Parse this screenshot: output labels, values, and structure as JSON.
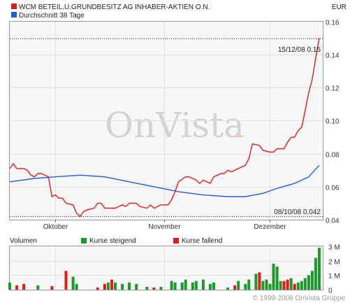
{
  "header": {
    "instrument": "WCM BETEIL.U.GRUNDBESITZ AG INHABER-AKTIEN O.N.",
    "currency": "EUR",
    "average_label": "Durchschnitt 38 Tage"
  },
  "watermark": "OnVista",
  "watermark_dot": ".",
  "copyright": "© 1999-2008 OnVista Gruppe",
  "colors": {
    "price": "#e31b1b",
    "average": "#1f5fd6",
    "rising": "#1a9a2a",
    "falling": "#e31b1b",
    "panel_bg": "#f7f7f7",
    "frame": "#9a9a9a"
  },
  "annotations": {
    "high": "15/12/08 0.15",
    "low": "08/10/08 0.042"
  },
  "volume_panel": {
    "title": "Volumen",
    "legend_up": "Kurse steigend",
    "legend_down": "Kurse fallend"
  },
  "chart_data": [
    {
      "type": "line",
      "title": "WCM BETEIL.U.GRUNDBESITZ AG INHABER-AKTIEN O.N.",
      "unit": "EUR",
      "x_range": [
        "2008-09-18",
        "2008-12-16"
      ],
      "x_ticks": [
        {
          "label": "Oktober",
          "date": "2008-10-01"
        },
        {
          "label": "November",
          "date": "2008-11-01"
        },
        {
          "label": "Dezember",
          "date": "2008-12-01"
        }
      ],
      "ylim": [
        0.04,
        0.16
      ],
      "y_ticks": [
        {
          "label": "0.04",
          "value": 0.04
        },
        {
          "label": "0.06",
          "value": 0.06
        },
        {
          "label": "0.08",
          "value": 0.08
        },
        {
          "label": "0.10",
          "value": 0.1
        },
        {
          "label": "0.12",
          "value": 0.12
        },
        {
          "label": "0.14",
          "value": 0.14
        },
        {
          "label": "0.16",
          "value": 0.16
        }
      ],
      "reference_lines": [
        {
          "value": 0.15,
          "label": "15/12/08 0.15"
        },
        {
          "value": 0.042,
          "label": "08/10/08 0.042"
        }
      ],
      "legend": "top-left",
      "series": [
        {
          "name": "WCM BETEIL.U.GRUNDBESITZ AG INHABER-AKTIEN O.N.",
          "color": "#e31b1b",
          "points": [
            [
              "2008-09-18",
              0.071
            ],
            [
              "2008-09-19",
              0.074
            ],
            [
              "2008-09-20",
              0.071
            ],
            [
              "2008-09-22",
              0.071
            ],
            [
              "2008-09-23",
              0.07
            ],
            [
              "2008-09-24",
              0.067
            ],
            [
              "2008-09-25",
              0.066
            ],
            [
              "2008-09-26",
              0.068
            ],
            [
              "2008-09-27",
              0.068
            ],
            [
              "2008-09-29",
              0.066
            ],
            [
              "2008-09-30",
              0.054
            ],
            [
              "2008-10-01",
              0.055
            ],
            [
              "2008-10-02",
              0.053
            ],
            [
              "2008-10-03",
              0.053
            ],
            [
              "2008-10-04",
              0.05
            ],
            [
              "2008-10-06",
              0.049
            ],
            [
              "2008-10-07",
              0.044
            ],
            [
              "2008-10-08",
              0.042
            ],
            [
              "2008-10-09",
              0.045
            ],
            [
              "2008-10-10",
              0.046
            ],
            [
              "2008-10-12",
              0.047
            ],
            [
              "2008-10-13",
              0.05
            ],
            [
              "2008-10-14",
              0.05
            ],
            [
              "2008-10-15",
              0.047
            ],
            [
              "2008-10-17",
              0.047
            ],
            [
              "2008-10-18",
              0.047
            ],
            [
              "2008-10-20",
              0.049
            ],
            [
              "2008-10-21",
              0.048
            ],
            [
              "2008-10-22",
              0.05
            ],
            [
              "2008-10-24",
              0.05
            ],
            [
              "2008-10-25",
              0.048
            ],
            [
              "2008-10-27",
              0.047
            ],
            [
              "2008-10-28",
              0.049
            ],
            [
              "2008-10-29",
              0.047
            ],
            [
              "2008-10-31",
              0.049
            ],
            [
              "2008-11-01",
              0.049
            ],
            [
              "2008-11-02",
              0.049
            ],
            [
              "2008-11-03",
              0.052
            ],
            [
              "2008-11-04",
              0.057
            ],
            [
              "2008-11-05",
              0.063
            ],
            [
              "2008-11-07",
              0.066
            ],
            [
              "2008-11-08",
              0.066
            ],
            [
              "2008-11-10",
              0.064
            ],
            [
              "2008-11-11",
              0.062
            ],
            [
              "2008-11-12",
              0.064
            ],
            [
              "2008-11-14",
              0.062
            ],
            [
              "2008-11-15",
              0.066
            ],
            [
              "2008-11-17",
              0.068
            ],
            [
              "2008-11-18",
              0.068
            ],
            [
              "2008-11-19",
              0.07
            ],
            [
              "2008-11-20",
              0.069
            ],
            [
              "2008-11-22",
              0.071
            ],
            [
              "2008-11-23",
              0.072
            ],
            [
              "2008-11-24",
              0.073
            ],
            [
              "2008-11-25",
              0.077
            ],
            [
              "2008-11-26",
              0.086
            ],
            [
              "2008-11-28",
              0.085
            ],
            [
              "2008-11-29",
              0.082
            ],
            [
              "2008-12-01",
              0.081
            ],
            [
              "2008-12-02",
              0.081
            ],
            [
              "2008-12-03",
              0.083
            ],
            [
              "2008-12-05",
              0.083
            ],
            [
              "2008-12-06",
              0.087
            ],
            [
              "2008-12-07",
              0.09
            ],
            [
              "2008-12-08",
              0.09
            ],
            [
              "2008-12-09",
              0.094
            ],
            [
              "2008-12-10",
              0.096
            ],
            [
              "2008-12-11",
              0.106
            ],
            [
              "2008-12-12",
              0.117
            ],
            [
              "2008-12-13",
              0.125
            ],
            [
              "2008-12-14",
              0.138
            ],
            [
              "2008-12-15",
              0.15
            ]
          ]
        },
        {
          "name": "Durchschnitt 38 Tage",
          "color": "#1f5fd6",
          "points": [
            [
              "2008-09-18",
              0.063
            ],
            [
              "2008-09-25",
              0.065
            ],
            [
              "2008-10-01",
              0.066
            ],
            [
              "2008-10-08",
              0.067
            ],
            [
              "2008-10-15",
              0.066
            ],
            [
              "2008-10-22",
              0.063
            ],
            [
              "2008-10-29",
              0.06
            ],
            [
              "2008-11-05",
              0.057
            ],
            [
              "2008-11-12",
              0.055
            ],
            [
              "2008-11-19",
              0.054
            ],
            [
              "2008-11-24",
              0.054
            ],
            [
              "2008-11-29",
              0.056
            ],
            [
              "2008-12-03",
              0.059
            ],
            [
              "2008-12-08",
              0.062
            ],
            [
              "2008-12-12",
              0.066
            ],
            [
              "2008-12-15",
              0.073
            ]
          ]
        }
      ]
    },
    {
      "type": "bar",
      "title": "Volumen",
      "ylim": [
        0,
        3000000
      ],
      "y_ticks": [
        {
          "label": "0",
          "value": 0
        },
        {
          "label": "1 M",
          "value": 1000000
        },
        {
          "label": "2 M",
          "value": 2000000
        },
        {
          "label": "3 M",
          "value": 3000000
        }
      ],
      "legend": "top",
      "series_names": {
        "up": "Kurse steigend",
        "down": "Kurse fallend"
      },
      "bars": [
        {
          "date": "2008-09-18",
          "value": 500000,
          "dir": "up"
        },
        {
          "date": "2008-09-20",
          "value": 300000,
          "dir": "down"
        },
        {
          "date": "2008-09-22",
          "value": 400000,
          "dir": "down"
        },
        {
          "date": "2008-09-26",
          "value": 300000,
          "dir": "up"
        },
        {
          "date": "2008-09-30",
          "value": 250000,
          "dir": "down"
        },
        {
          "date": "2008-10-04",
          "value": 1300000,
          "dir": "down"
        },
        {
          "date": "2008-10-06",
          "value": 900000,
          "dir": "up"
        },
        {
          "date": "2008-10-07",
          "value": 400000,
          "dir": "up"
        },
        {
          "date": "2008-10-13",
          "value": 150000,
          "dir": "down"
        },
        {
          "date": "2008-10-15",
          "value": 400000,
          "dir": "down"
        },
        {
          "date": "2008-10-16",
          "value": 500000,
          "dir": "up"
        },
        {
          "date": "2008-10-17",
          "value": 700000,
          "dir": "down"
        },
        {
          "date": "2008-10-18",
          "value": 500000,
          "dir": "up"
        },
        {
          "date": "2008-10-20",
          "value": 400000,
          "dir": "up"
        },
        {
          "date": "2008-10-22",
          "value": 500000,
          "dir": "up"
        },
        {
          "date": "2008-10-24",
          "value": 400000,
          "dir": "up"
        },
        {
          "date": "2008-10-27",
          "value": 200000,
          "dir": "up"
        },
        {
          "date": "2008-10-29",
          "value": 150000,
          "dir": "down"
        },
        {
          "date": "2008-10-31",
          "value": 200000,
          "dir": "up"
        },
        {
          "date": "2008-11-03",
          "value": 600000,
          "dir": "up"
        },
        {
          "date": "2008-11-04",
          "value": 500000,
          "dir": "up"
        },
        {
          "date": "2008-11-06",
          "value": 500000,
          "dir": "up"
        },
        {
          "date": "2008-11-07",
          "value": 700000,
          "dir": "up"
        },
        {
          "date": "2008-11-09",
          "value": 500000,
          "dir": "up"
        },
        {
          "date": "2008-11-10",
          "value": 600000,
          "dir": "up"
        },
        {
          "date": "2008-11-12",
          "value": 700000,
          "dir": "up"
        },
        {
          "date": "2008-11-14",
          "value": 400000,
          "dir": "up"
        },
        {
          "date": "2008-11-15",
          "value": 500000,
          "dir": "up"
        },
        {
          "date": "2008-11-19",
          "value": 150000,
          "dir": "up"
        },
        {
          "date": "2008-11-21",
          "value": 300000,
          "dir": "down"
        },
        {
          "date": "2008-11-22",
          "value": 600000,
          "dir": "up"
        },
        {
          "date": "2008-11-24",
          "value": 400000,
          "dir": "up"
        },
        {
          "date": "2008-11-25",
          "value": 700000,
          "dir": "up"
        },
        {
          "date": "2008-11-27",
          "value": 1100000,
          "dir": "up"
        },
        {
          "date": "2008-11-28",
          "value": 1200000,
          "dir": "down"
        },
        {
          "date": "2008-11-29",
          "value": 600000,
          "dir": "up"
        },
        {
          "date": "2008-11-30",
          "value": 700000,
          "dir": "up"
        },
        {
          "date": "2008-12-01",
          "value": 400000,
          "dir": "up"
        },
        {
          "date": "2008-12-02",
          "value": 1800000,
          "dir": "up"
        },
        {
          "date": "2008-12-03",
          "value": 1600000,
          "dir": "up"
        },
        {
          "date": "2008-12-04",
          "value": 600000,
          "dir": "up"
        },
        {
          "date": "2008-12-05",
          "value": 600000,
          "dir": "down"
        },
        {
          "date": "2008-12-06",
          "value": 700000,
          "dir": "down"
        },
        {
          "date": "2008-12-07",
          "value": 800000,
          "dir": "up"
        },
        {
          "date": "2008-12-08",
          "value": 400000,
          "dir": "down"
        },
        {
          "date": "2008-12-09",
          "value": 500000,
          "dir": "up"
        },
        {
          "date": "2008-12-10",
          "value": 600000,
          "dir": "up"
        },
        {
          "date": "2008-12-11",
          "value": 800000,
          "dir": "up"
        },
        {
          "date": "2008-12-12",
          "value": 1000000,
          "dir": "up"
        },
        {
          "date": "2008-12-13",
          "value": 1300000,
          "dir": "up"
        },
        {
          "date": "2008-12-14",
          "value": 2200000,
          "dir": "up"
        },
        {
          "date": "2008-12-15",
          "value": 2900000,
          "dir": "up"
        }
      ]
    }
  ]
}
